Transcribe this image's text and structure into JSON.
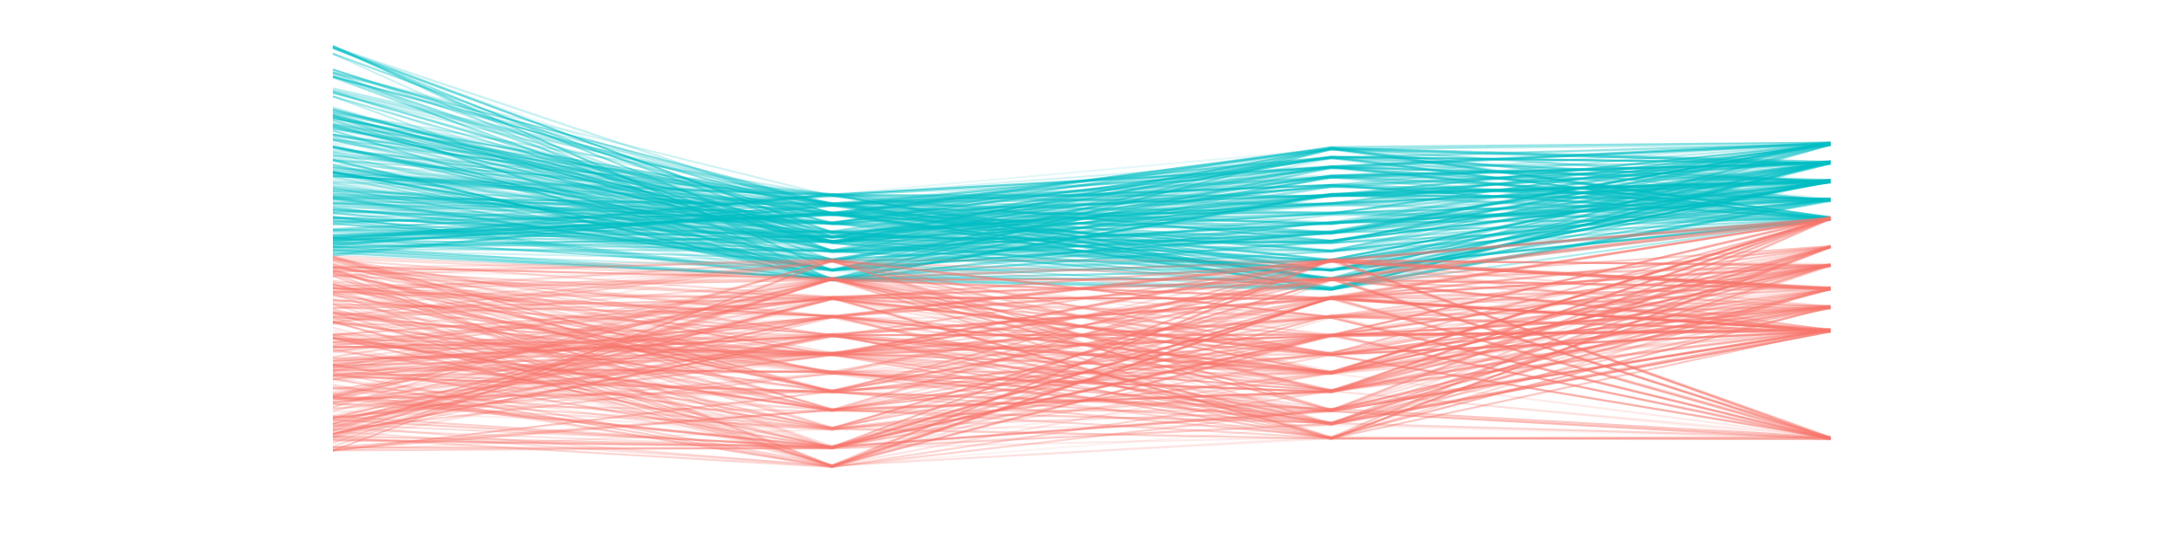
{
  "chart_data": {
    "type": "line",
    "subtype": "parallel-coordinates",
    "title": "",
    "xlabel": "",
    "ylabel": "",
    "x": [
      0,
      1,
      2,
      3
    ],
    "ylim": [
      0,
      1
    ],
    "grid": false,
    "legend": "none",
    "colors": {
      "group_a": "#00BFC4",
      "group_b": "#F8766D"
    },
    "series": [
      {
        "group": "group_a",
        "values_by_axis": [
          [
            0.95,
            0.9,
            0.86,
            0.82,
            0.8,
            0.78,
            0.76,
            0.74,
            0.72,
            0.7,
            0.68,
            0.66,
            0.64,
            0.62,
            0.6,
            0.58,
            0.56,
            0.54,
            0.52
          ],
          [
            0.64,
            0.62,
            0.6,
            0.58,
            0.56,
            0.55,
            0.54,
            0.52,
            0.5,
            0.48,
            0.46
          ],
          [
            0.74,
            0.72,
            0.7,
            0.68,
            0.66,
            0.64,
            0.62,
            0.6,
            0.58,
            0.56,
            0.54,
            0.52,
            0.5,
            0.48,
            0.46,
            0.44
          ],
          [
            0.75,
            0.71,
            0.67,
            0.63,
            0.59
          ]
        ]
      },
      {
        "group": "group_b",
        "values_by_axis": [
          [
            0.5,
            0.48,
            0.46,
            0.44,
            0.42,
            0.4,
            0.38,
            0.36,
            0.34,
            0.32,
            0.3,
            0.28,
            0.26,
            0.24,
            0.22,
            0.2,
            0.18,
            0.16,
            0.14,
            0.12,
            0.1
          ],
          [
            0.5,
            0.46,
            0.42,
            0.38,
            0.34,
            0.3,
            0.26,
            0.22,
            0.18,
            0.14,
            0.1,
            0.06
          ],
          [
            0.5,
            0.46,
            0.42,
            0.38,
            0.34,
            0.3,
            0.26,
            0.22,
            0.18,
            0.15,
            0.12
          ],
          [
            0.59,
            0.53,
            0.49,
            0.44,
            0.4,
            0.35,
            0.12
          ]
        ]
      }
    ],
    "line_count_per_group": 260
  }
}
